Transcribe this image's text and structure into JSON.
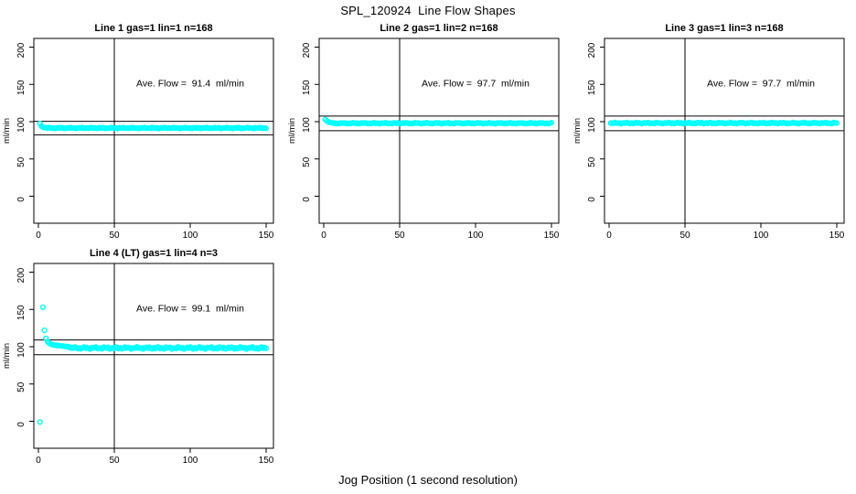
{
  "title": "SPL_120924  Line Flow Shapes",
  "xlabel": "Jog Position (1 second resolution)",
  "ylabel": "ml/min",
  "colors": {
    "point": "#00ffff",
    "axis": "#000000",
    "background": "#ffffff"
  },
  "chart_data": [
    {
      "type": "scatter",
      "title": "Line 1 gas=1 lin=1 n=168",
      "annotation": "Ave. Flow =  91.4  ml/min",
      "ave_flow_ml_min": 91.4,
      "n": 168,
      "xlim": [
        0,
        150
      ],
      "ylim": [
        0,
        200
      ],
      "xticks": [
        0,
        50,
        100,
        150
      ],
      "yticks": [
        0,
        50,
        100,
        150,
        200
      ],
      "vline_x": 50,
      "hlines": [
        100.5,
        82.3
      ],
      "annotation_pos": [
        100,
        147
      ],
      "anchor_points": [
        [
          1,
          97.5
        ],
        [
          2,
          94.0
        ],
        [
          3,
          92.5
        ],
        [
          4,
          92.0
        ],
        [
          5,
          91.8
        ]
      ],
      "band": {
        "x_start": 6,
        "x_end": 150,
        "level": 91.5,
        "spread": 0.8,
        "seed": 1
      }
    },
    {
      "type": "scatter",
      "title": "Line 2 gas=1 lin=2 n=168",
      "annotation": "Ave. Flow =  97.7  ml/min",
      "ave_flow_ml_min": 97.7,
      "n": 168,
      "xlim": [
        0,
        150
      ],
      "ylim": [
        0,
        200
      ],
      "xticks": [
        0,
        50,
        100,
        150
      ],
      "yticks": [
        0,
        50,
        100,
        150,
        200
      ],
      "vline_x": 50,
      "hlines": [
        107.5,
        87.9
      ],
      "annotation_pos": [
        100,
        147
      ],
      "anchor_points": [
        [
          1,
          103.0
        ],
        [
          2,
          101.0
        ],
        [
          3,
          99.8
        ],
        [
          4,
          99.0
        ],
        [
          5,
          98.5
        ]
      ],
      "band": {
        "x_start": 6,
        "x_end": 150,
        "level": 97.9,
        "spread": 0.8,
        "seed": 2
      }
    },
    {
      "type": "scatter",
      "title": "Line 3 gas=1 lin=3 n=168",
      "annotation": "Ave. Flow =  97.7  ml/min",
      "ave_flow_ml_min": 97.7,
      "n": 168,
      "xlim": [
        0,
        150
      ],
      "ylim": [
        0,
        200
      ],
      "xticks": [
        0,
        50,
        100,
        150
      ],
      "yticks": [
        0,
        50,
        100,
        150,
        200
      ],
      "vline_x": 50,
      "hlines": [
        107.5,
        87.9
      ],
      "annotation_pos": [
        100,
        147
      ],
      "anchor_points": [],
      "band": {
        "x_start": 1,
        "x_end": 150,
        "level": 98.1,
        "spread": 0.9,
        "seed": 3
      }
    },
    {
      "type": "scatter",
      "title": "Line 4 (LT) gas=1 lin=4 n=3",
      "annotation": "Ave. Flow =  99.1  ml/min",
      "ave_flow_ml_min": 99.1,
      "n": 3,
      "xlim": [
        0,
        150
      ],
      "ylim": [
        0,
        200
      ],
      "xticks": [
        0,
        50,
        100,
        150
      ],
      "yticks": [
        0,
        50,
        100,
        150,
        200
      ],
      "vline_x": 50,
      "hlines": [
        109.0,
        89.2
      ],
      "annotation_pos": [
        100,
        147
      ],
      "anchor_points": [
        [
          1,
          -1
        ],
        [
          3,
          153
        ],
        [
          4,
          122
        ],
        [
          5,
          111
        ],
        [
          6,
          107
        ],
        [
          7,
          105
        ],
        [
          8,
          103.5
        ],
        [
          9,
          103
        ],
        [
          10,
          102.5
        ],
        [
          11,
          102
        ],
        [
          12,
          102
        ],
        [
          13,
          101.5
        ],
        [
          14,
          101.5
        ],
        [
          15,
          101
        ],
        [
          16,
          101
        ],
        [
          17,
          100.5
        ],
        [
          18,
          100.5
        ],
        [
          19,
          100
        ],
        [
          20,
          100
        ]
      ],
      "band": {
        "x_start": 21,
        "x_end": 150,
        "level": 98.3,
        "spread": 1.6,
        "seed": 4
      }
    }
  ]
}
